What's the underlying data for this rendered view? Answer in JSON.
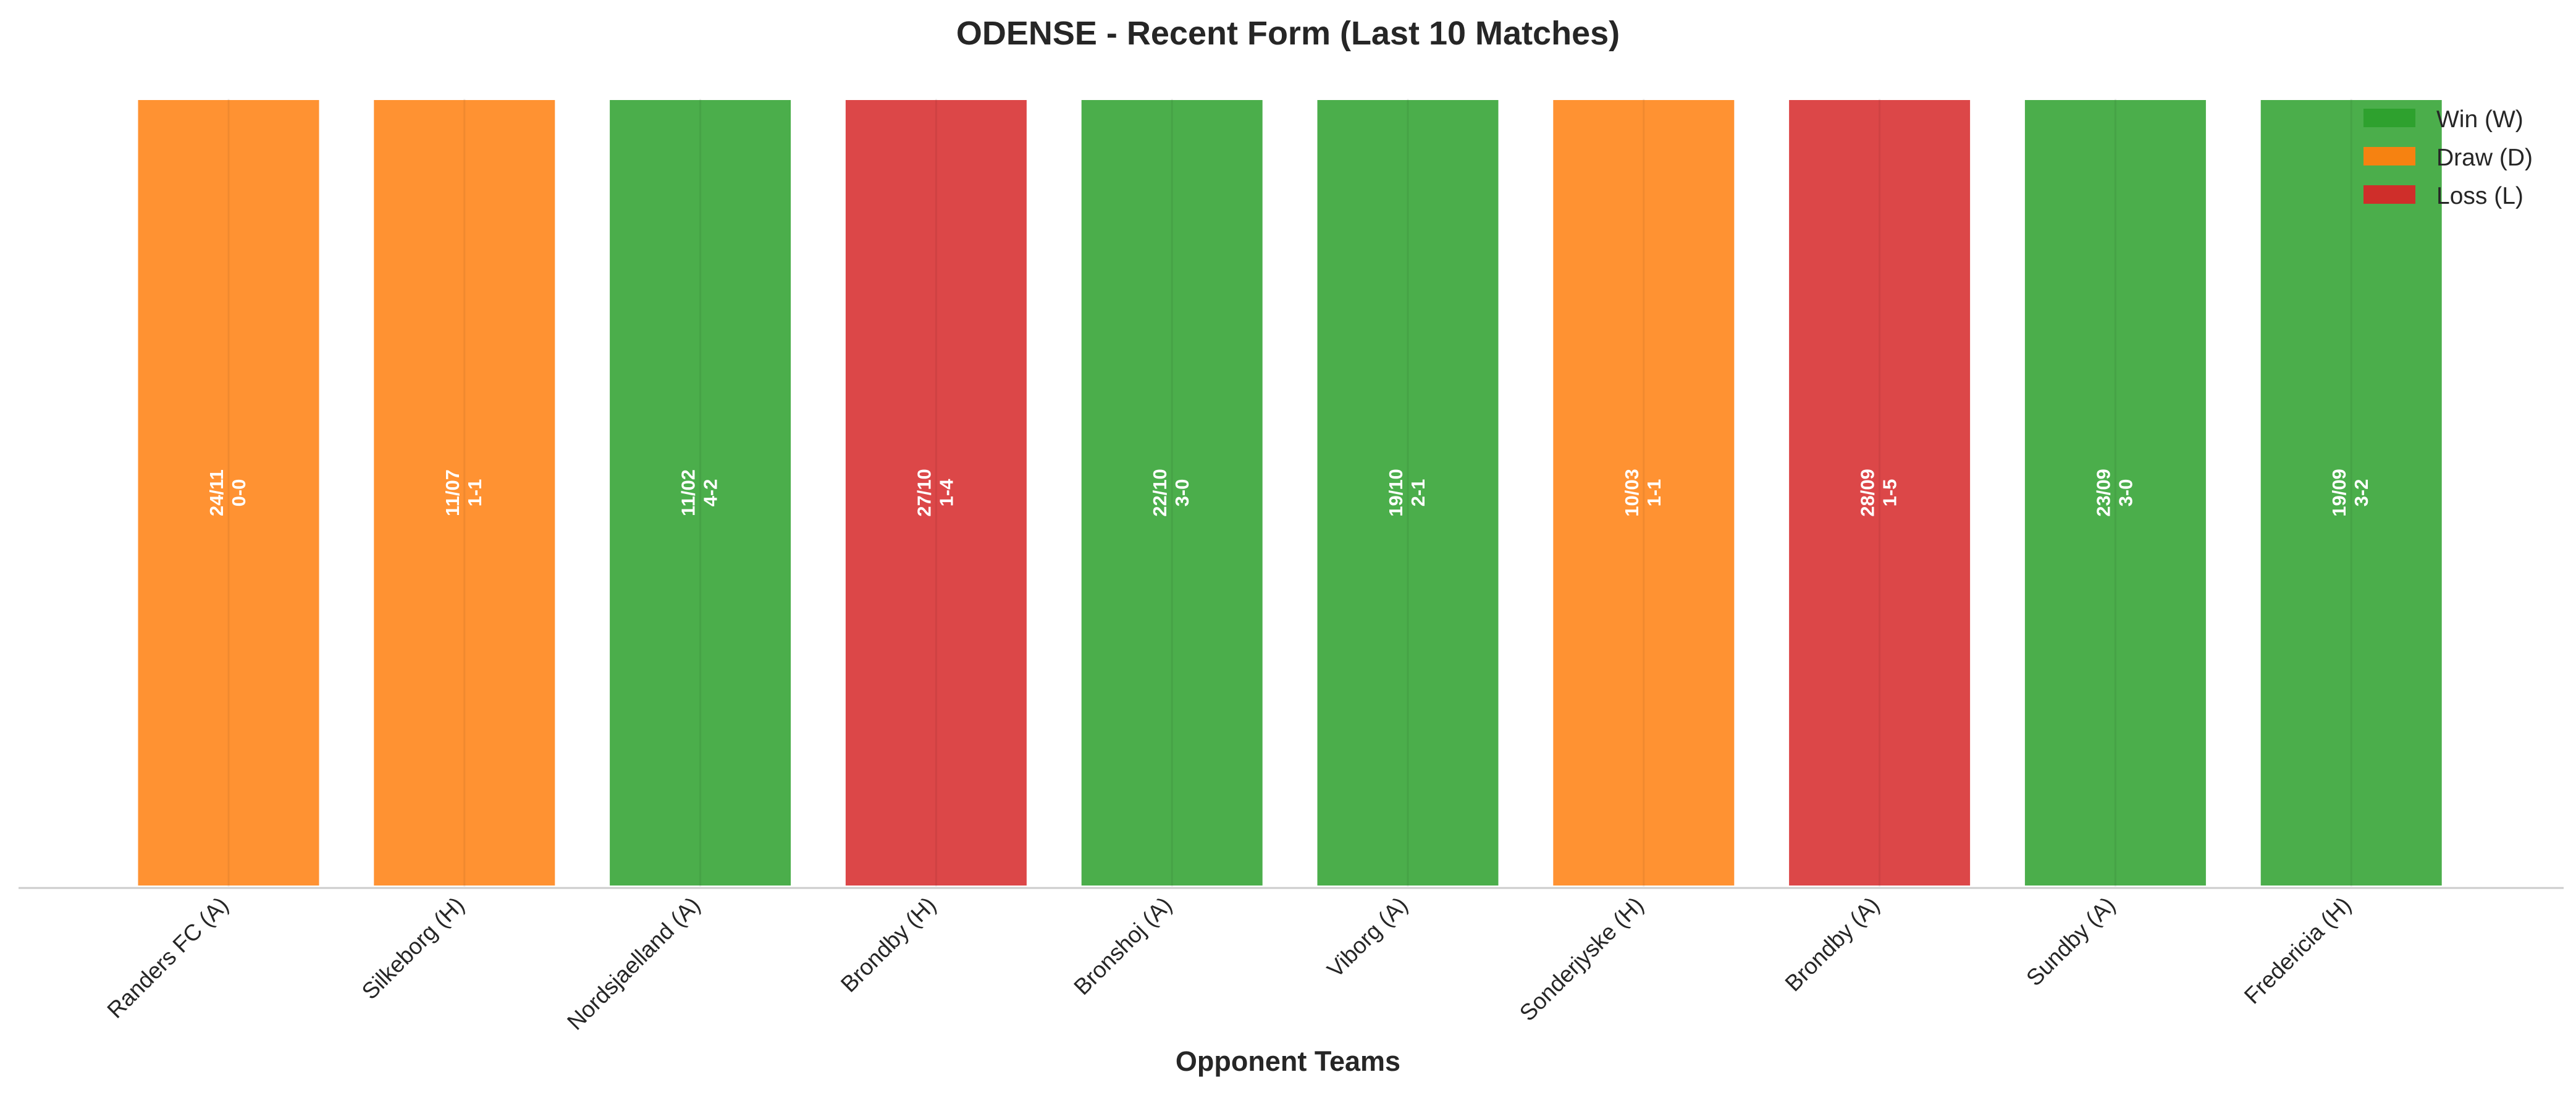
{
  "chart_data": {
    "type": "bar",
    "title": "ODENSE - Recent Form (Last 10 Matches)",
    "xlabel": "Opponent Teams",
    "ylabel": "",
    "ylim": [
      0,
      1
    ],
    "grid": false,
    "legend_placement": "top-right",
    "colors": {
      "W": "#2ca02c",
      "D": "#ff7f0e",
      "L": "#d62728"
    },
    "legend": [
      {
        "result": "W",
        "label": "Win (W)"
      },
      {
        "result": "D",
        "label": "Draw (D)"
      },
      {
        "result": "L",
        "label": "Loss (L)"
      }
    ],
    "categories": [
      "Randers FC (A)",
      "Silkeborg (H)",
      "Nordsjaelland (A)",
      "Brondby (H)",
      "Bronshoj (A)",
      "Viborg (A)",
      "Sonderjyske (H)",
      "Brondby (A)",
      "Sundby (A)",
      "Fredericia (H)"
    ],
    "values": [
      1,
      1,
      1,
      1,
      1,
      1,
      1,
      1,
      1,
      1
    ],
    "matches": [
      {
        "opponent": "Randers FC (A)",
        "date": "24/11",
        "score": "0-0",
        "result": "D"
      },
      {
        "opponent": "Silkeborg (H)",
        "date": "11/07",
        "score": "1-1",
        "result": "D"
      },
      {
        "opponent": "Nordsjaelland (A)",
        "date": "11/02",
        "score": "4-2",
        "result": "W"
      },
      {
        "opponent": "Brondby (H)",
        "date": "27/10",
        "score": "1-4",
        "result": "L"
      },
      {
        "opponent": "Bronshoj (A)",
        "date": "22/10",
        "score": "3-0",
        "result": "W"
      },
      {
        "opponent": "Viborg (A)",
        "date": "19/10",
        "score": "2-1",
        "result": "W"
      },
      {
        "opponent": "Sonderjyske (H)",
        "date": "10/03",
        "score": "1-1",
        "result": "D"
      },
      {
        "opponent": "Brondby (A)",
        "date": "28/09",
        "score": "1-5",
        "result": "L"
      },
      {
        "opponent": "Sundby (A)",
        "date": "23/09",
        "score": "3-0",
        "result": "W"
      },
      {
        "opponent": "Fredericia (H)",
        "date": "19/09",
        "score": "3-2",
        "result": "W"
      }
    ]
  }
}
